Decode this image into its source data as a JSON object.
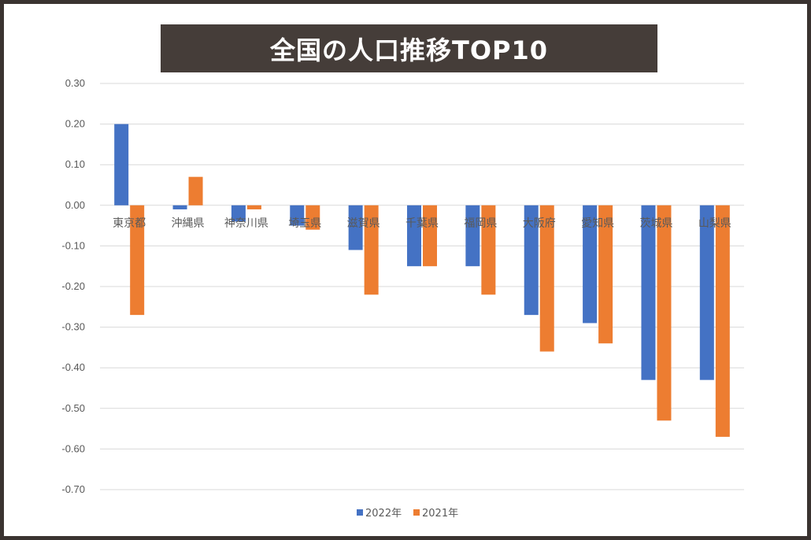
{
  "title": "全国の人口推移TOP10",
  "colors": {
    "series_2022": "#4472c4",
    "series_2021": "#ed7d31",
    "grid": "#d9d9d9",
    "title_bg": "#453d39"
  },
  "chart_data": {
    "type": "bar",
    "title": "全国の人口推移TOP10",
    "categories": [
      "東京都",
      "沖縄県",
      "神奈川県",
      "埼玉県",
      "滋賀県",
      "千葉県",
      "福岡県",
      "大阪府",
      "愛知県",
      "茨城県",
      "山梨県"
    ],
    "series": [
      {
        "name": "2022年",
        "color": "#4472c4",
        "values": [
          0.2,
          -0.01,
          -0.04,
          -0.05,
          -0.11,
          -0.15,
          -0.15,
          -0.27,
          -0.29,
          -0.43,
          -0.43
        ]
      },
      {
        "name": "2021年",
        "color": "#ed7d31",
        "values": [
          -0.27,
          0.07,
          -0.01,
          -0.06,
          -0.22,
          -0.15,
          -0.22,
          -0.36,
          -0.34,
          -0.53,
          -0.57
        ]
      }
    ],
    "ylim": [
      -0.7,
      0.3
    ],
    "yticks": [
      "0.30",
      "0.20",
      "0.10",
      "0.00",
      "-0.10",
      "-0.20",
      "-0.30",
      "-0.40",
      "-0.50",
      "-0.60",
      "-0.70"
    ],
    "grid": true,
    "legend": "bottom"
  }
}
